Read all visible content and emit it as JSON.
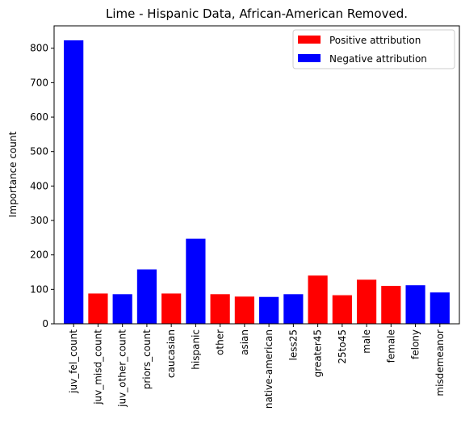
{
  "chart_data": {
    "type": "bar",
    "title": "Lime - Hispanic Data, African-American Removed.",
    "xlabel": "",
    "ylabel": "Importance count",
    "ylim": [
      0,
      865
    ],
    "yticks": [
      0,
      100,
      200,
      300,
      400,
      500,
      600,
      700,
      800
    ],
    "categories": [
      "juv_fel_count",
      "juv_misd_count",
      "juv_other_count",
      "priors_count",
      "caucasian",
      "hispanic",
      "other",
      "asian",
      "native-american",
      "less25",
      "greater45",
      "25to45",
      "male",
      "female",
      "felony",
      "misdemeanor"
    ],
    "values": [
      823,
      88,
      86,
      158,
      88,
      247,
      86,
      79,
      78,
      86,
      140,
      83,
      128,
      110,
      112,
      91
    ],
    "attribution": [
      "negative",
      "positive",
      "negative",
      "negative",
      "positive",
      "negative",
      "positive",
      "positive",
      "negative",
      "negative",
      "positive",
      "positive",
      "positive",
      "positive",
      "negative",
      "negative"
    ],
    "colors": {
      "positive": "#ff0000",
      "negative": "#0000ff"
    },
    "legend": {
      "position": "top-right",
      "entries": [
        {
          "key": "positive",
          "label": "Positive attribution"
        },
        {
          "key": "negative",
          "label": "Negative attribution"
        }
      ]
    },
    "grid": false
  }
}
